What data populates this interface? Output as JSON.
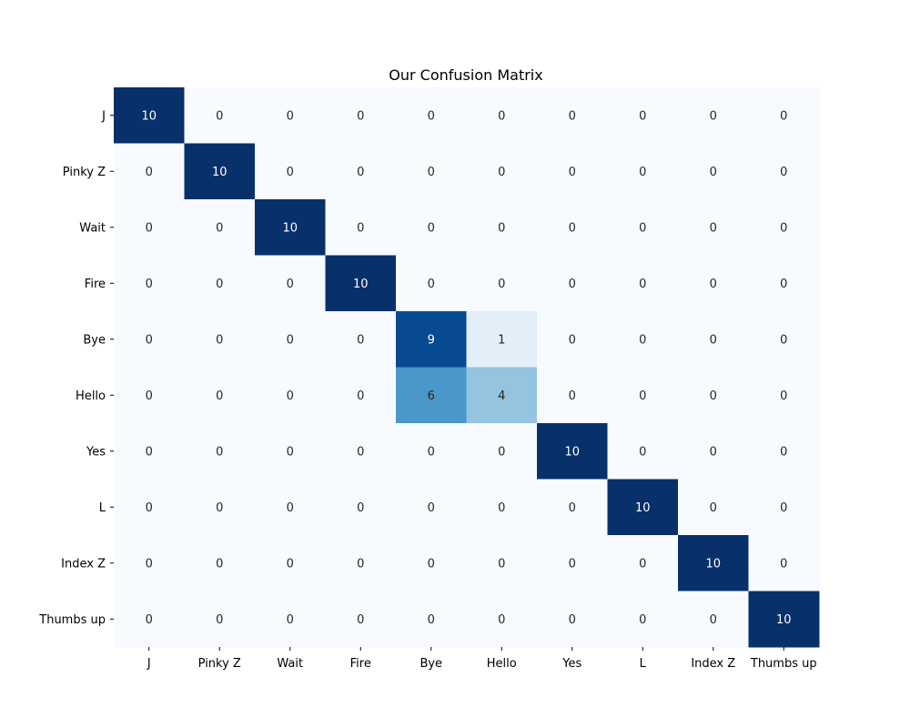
{
  "chart_data": {
    "type": "heatmap",
    "title": "Our Confusion Matrix",
    "xlabel": "",
    "ylabel": "",
    "x_categories": [
      "J",
      "Pinky Z",
      "Wait",
      "Fire",
      "Bye",
      "Hello",
      "Yes",
      "L",
      "Index Z",
      "Thumbs up"
    ],
    "y_categories": [
      "J",
      "Pinky Z",
      "Wait",
      "Fire",
      "Bye",
      "Hello",
      "Yes",
      "L",
      "Index Z",
      "Thumbs up"
    ],
    "values": [
      [
        10,
        0,
        0,
        0,
        0,
        0,
        0,
        0,
        0,
        0
      ],
      [
        0,
        10,
        0,
        0,
        0,
        0,
        0,
        0,
        0,
        0
      ],
      [
        0,
        0,
        10,
        0,
        0,
        0,
        0,
        0,
        0,
        0
      ],
      [
        0,
        0,
        0,
        10,
        0,
        0,
        0,
        0,
        0,
        0
      ],
      [
        0,
        0,
        0,
        0,
        9,
        1,
        0,
        0,
        0,
        0
      ],
      [
        0,
        0,
        0,
        0,
        6,
        4,
        0,
        0,
        0,
        0
      ],
      [
        0,
        0,
        0,
        0,
        0,
        0,
        10,
        0,
        0,
        0
      ],
      [
        0,
        0,
        0,
        0,
        0,
        0,
        0,
        10,
        0,
        0
      ],
      [
        0,
        0,
        0,
        0,
        0,
        0,
        0,
        0,
        10,
        0
      ],
      [
        0,
        0,
        0,
        0,
        0,
        0,
        0,
        0,
        0,
        10
      ]
    ],
    "value_range": [
      0,
      10
    ],
    "colormap": "Blues",
    "colorbar": false,
    "grid": false,
    "legend": "none"
  }
}
